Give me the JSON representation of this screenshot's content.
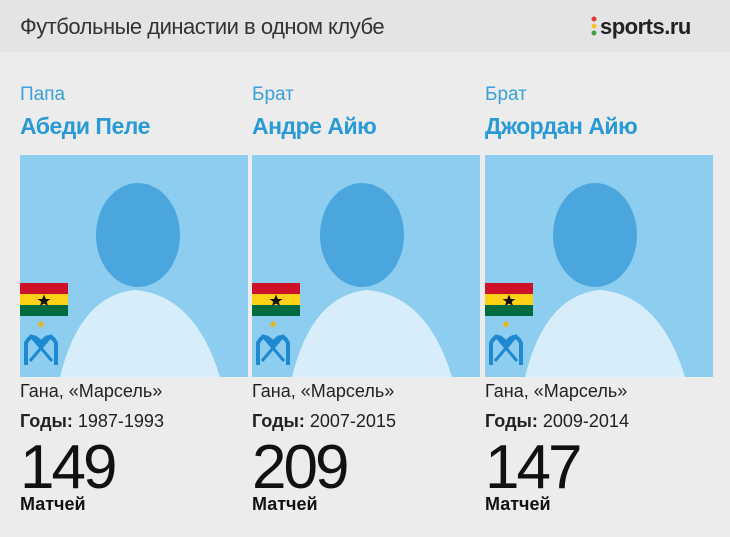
{
  "header": {
    "title": "Футбольные династии в одном клубе",
    "logo": "sports.ru"
  },
  "players": [
    {
      "role": "Папа",
      "name": "Абеди Пеле",
      "country_club": "Гана, «Марсель»",
      "years_label": "Годы:",
      "years": "1987-1993",
      "matches": "149",
      "matches_label": "Матчей"
    },
    {
      "role": "Брат",
      "name": "Андре Айю",
      "country_club": "Гана, «Марсель»",
      "years_label": "Годы:",
      "years": "2007-2015",
      "matches": "209",
      "matches_label": "Матчей"
    },
    {
      "role": "Брат",
      "name": "Джордан Айю",
      "country_club": "Гана, «Марсель»",
      "years_label": "Годы:",
      "years": "2009-2014",
      "matches": "147",
      "matches_label": "Матчей"
    }
  ]
}
